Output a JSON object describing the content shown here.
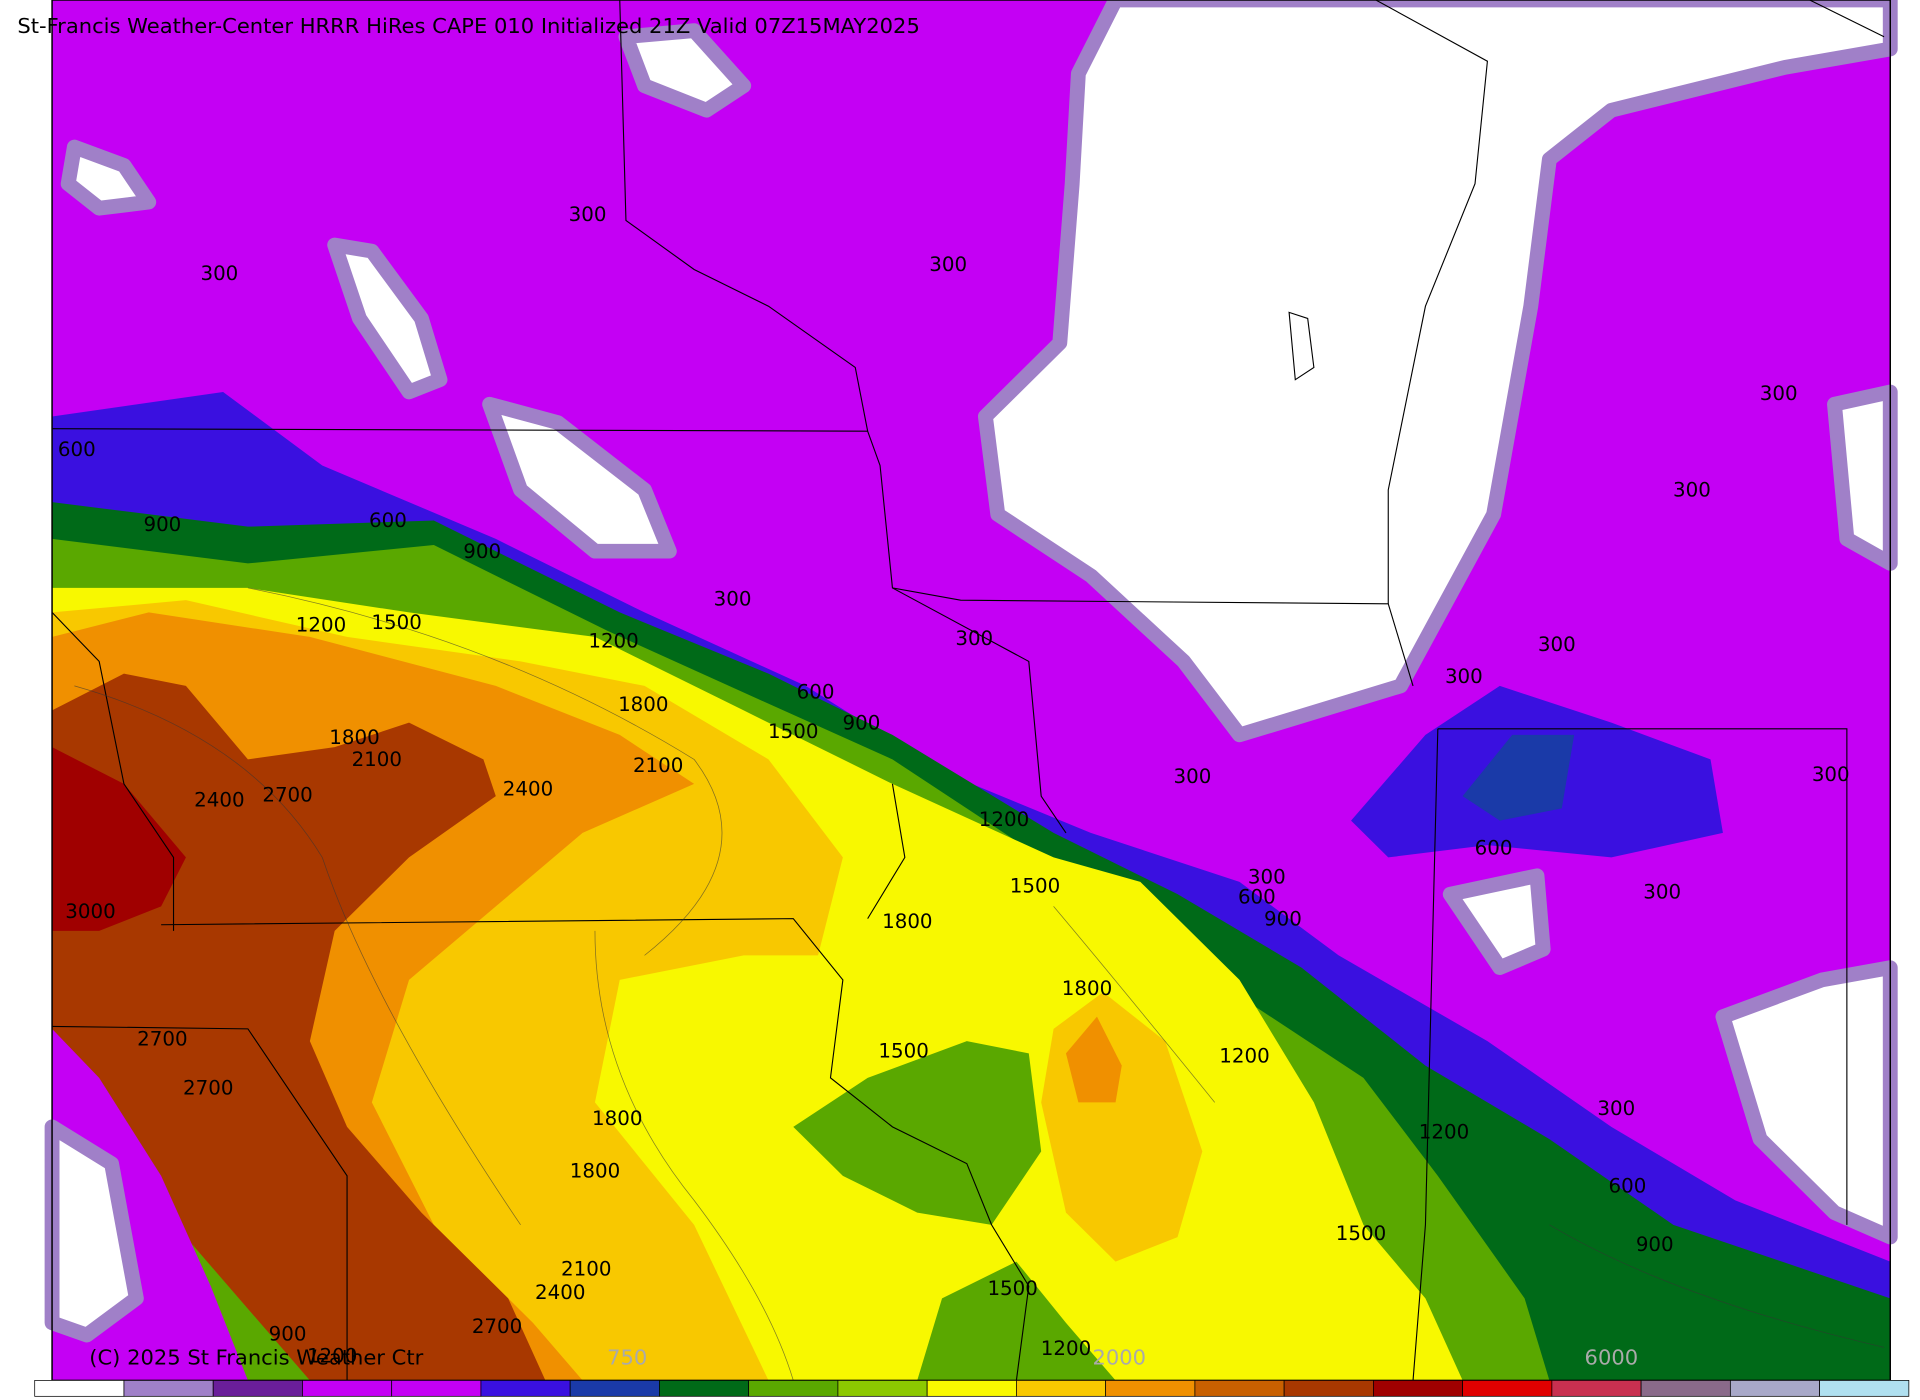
{
  "header": {
    "title": "St-Francis Weather-Center HRRR HiRes CAPE  010 Initialized  21Z Valid 07Z15MAY2025",
    "copyright": "(C) 2025 St Francis Weather Ctr"
  },
  "contour_labels": [
    300,
    300,
    300,
    300,
    300,
    300,
    300,
    300,
    300,
    300,
    300,
    300,
    300,
    300,
    600,
    600,
    600,
    600,
    600,
    600,
    900,
    900,
    900,
    900,
    900,
    900,
    1200,
    1200,
    1200,
    1200,
    1200,
    1200,
    1200,
    1500,
    1500,
    1500,
    1500,
    1500,
    1500,
    1800,
    1800,
    1800,
    1800,
    1800,
    1800,
    2100,
    2100,
    2100,
    2400,
    2400,
    2400,
    2700,
    2700,
    2700,
    2700,
    3000
  ],
  "colorbar": {
    "colors": [
      "#ffffff",
      "#a080c8",
      "#6a1e9a",
      "#c400f4",
      "#c400f4",
      "#3a10e0",
      "#1a3aa8",
      "#006a18",
      "#5aa800",
      "#8cc800",
      "#f8f800",
      "#f8c800",
      "#f09000",
      "#c86000",
      "#a83800",
      "#a00000",
      "#e00000",
      "#c83050",
      "#8a6a8a",
      "#a8a8c8",
      "#b0e0f0"
    ],
    "labels": [
      "750",
      "2000",
      "6000"
    ]
  }
}
